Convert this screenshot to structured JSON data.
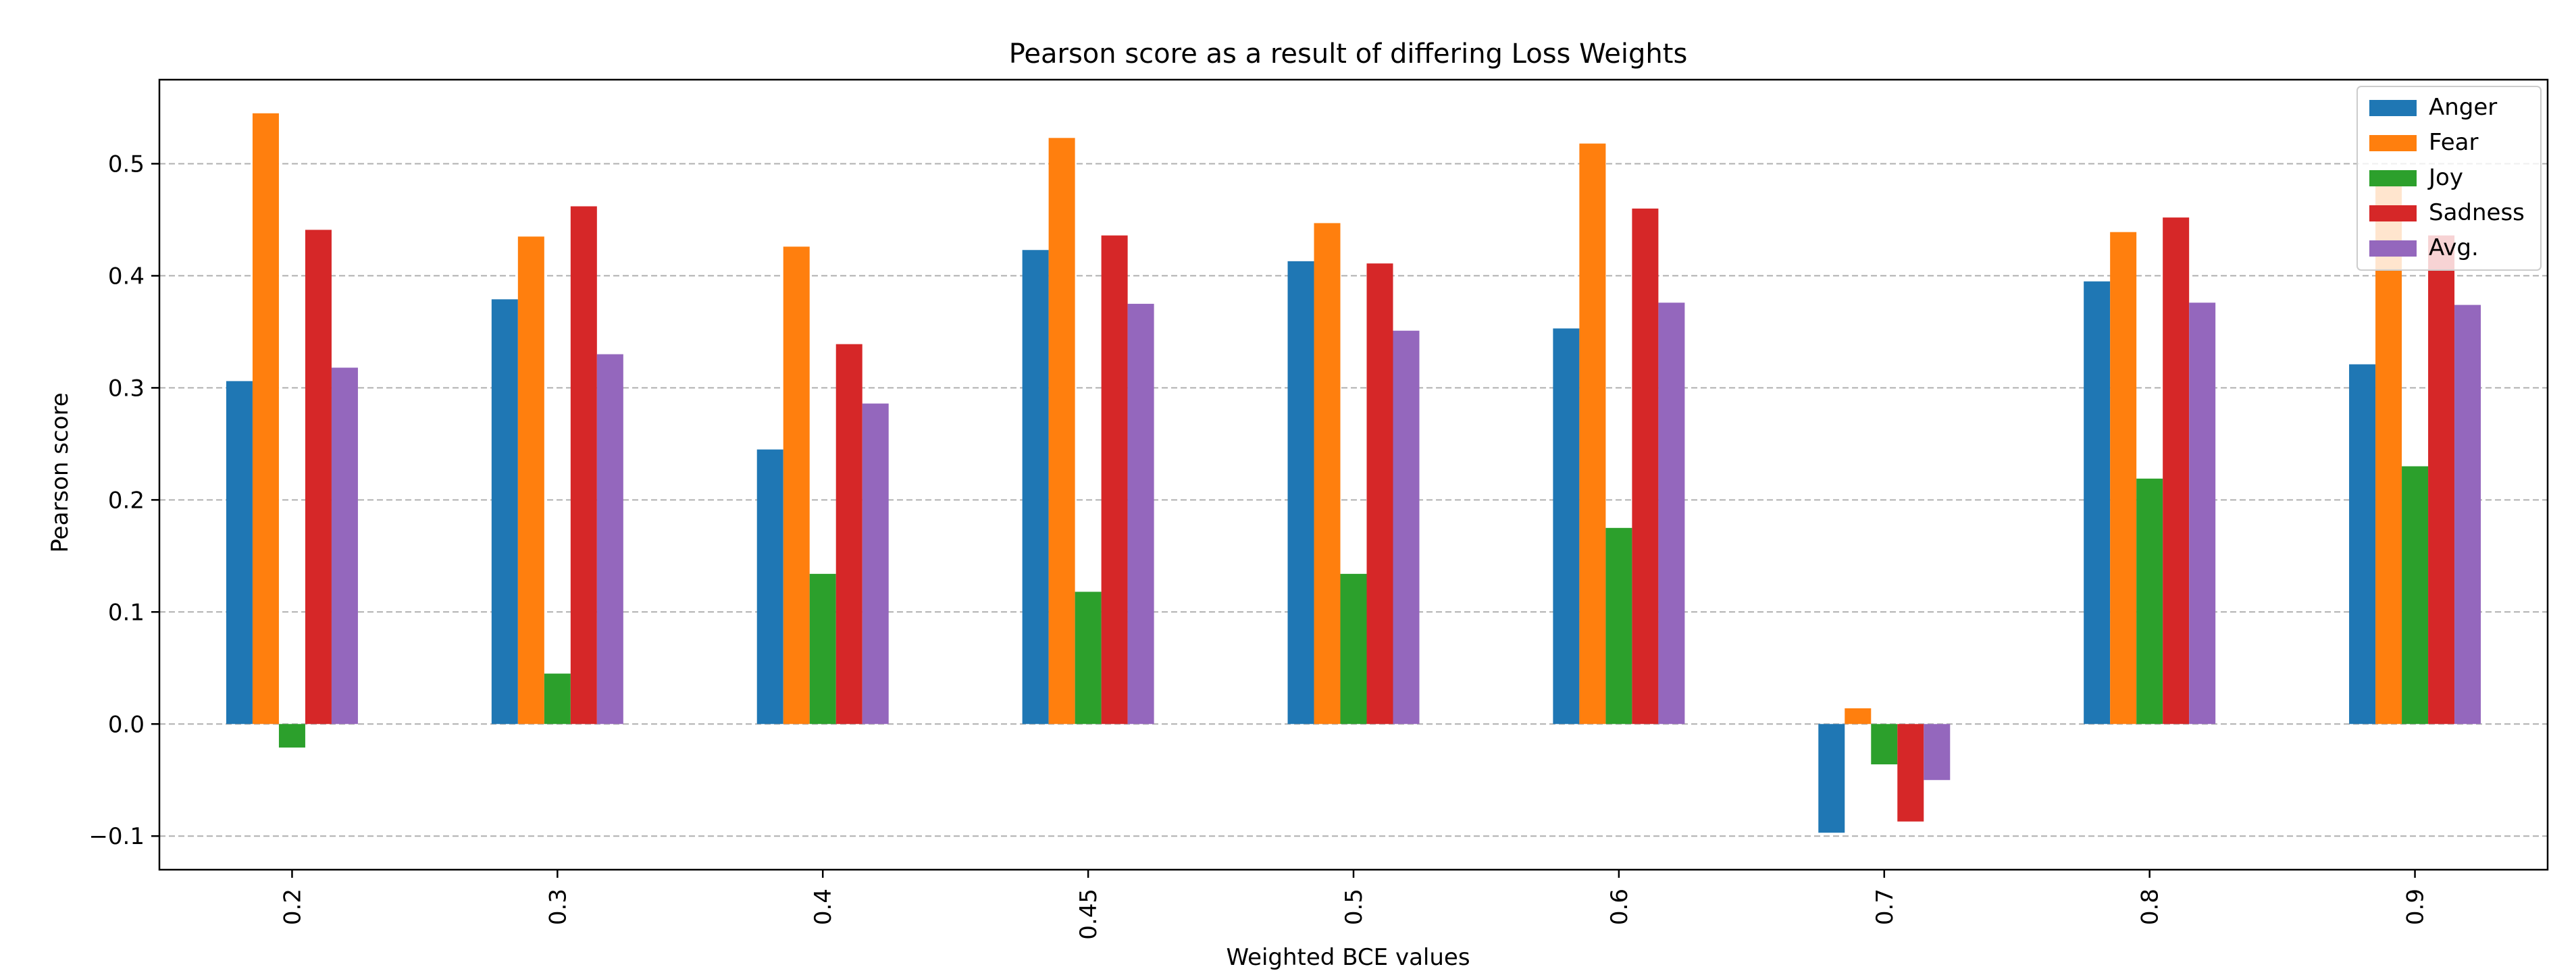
{
  "chart_data": {
    "type": "bar",
    "title": "Pearson score as a result of differing Loss Weights",
    "xlabel": "Weighted BCE values",
    "ylabel": "Pearson score",
    "categories": [
      "0.2",
      "0.3",
      "0.4",
      "0.45",
      "0.5",
      "0.6",
      "0.7",
      "0.8",
      "0.9"
    ],
    "series": [
      {
        "name": "Anger",
        "color": "#1f77b4",
        "values": [
          0.306,
          0.379,
          0.245,
          0.423,
          0.413,
          0.353,
          -0.097,
          0.395,
          0.321
        ]
      },
      {
        "name": "Fear",
        "color": "#ff7f0e",
        "values": [
          0.545,
          0.435,
          0.426,
          0.523,
          0.447,
          0.518,
          0.014,
          0.439,
          0.49
        ]
      },
      {
        "name": "Joy",
        "color": "#2ca02c",
        "values": [
          -0.021,
          0.045,
          0.134,
          0.118,
          0.134,
          0.175,
          -0.036,
          0.219,
          0.23
        ]
      },
      {
        "name": "Sadness",
        "color": "#d62728",
        "values": [
          0.441,
          0.462,
          0.339,
          0.436,
          0.411,
          0.46,
          -0.087,
          0.452,
          0.436
        ]
      },
      {
        "name": "Avg.",
        "color": "#9467bd",
        "values": [
          0.318,
          0.33,
          0.286,
          0.375,
          0.351,
          0.376,
          -0.05,
          0.376,
          0.374
        ]
      }
    ],
    "ylim": [
      -0.13,
      0.575
    ],
    "yticks": [
      "−0.1",
      "0.0",
      "0.1",
      "0.2",
      "0.3",
      "0.4",
      "0.5"
    ],
    "ytick_values": [
      -0.1,
      0.0,
      0.1,
      0.2,
      0.3,
      0.4,
      0.5
    ],
    "grid": "horizontal dashed",
    "legend_position": "top-right"
  }
}
